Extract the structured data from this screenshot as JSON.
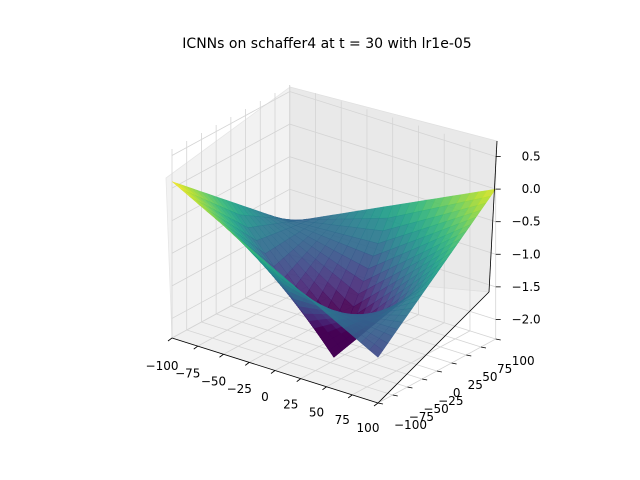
{
  "chart_data": {
    "type": "surface",
    "title": "ICNNs on schaffer4 at t = 30 with lr1e-05",
    "x_ticks": [
      "−100",
      "−75",
      "−50",
      "−25",
      "0",
      "25",
      "50",
      "75",
      "100"
    ],
    "y_ticks": [
      "−100",
      "−75",
      "−50",
      "−25",
      "0",
      "25",
      "50",
      "75",
      "100"
    ],
    "z_ticks": [
      "−2.0",
      "−1.5",
      "−1.0",
      "−0.5",
      "0.0",
      "0.5"
    ],
    "xlim": [
      -100,
      100
    ],
    "ylim": [
      -100,
      100
    ],
    "zlim": [
      -2.3,
      0.6
    ],
    "surface_corners": {
      "x_-100_y_-100": 0.1,
      "x_100_y_-100": -1.6,
      "x_100_y_100": 0.0,
      "x_-100_y_100": -1.5,
      "x_0_y_0": -1.9
    },
    "colormap": "viridis",
    "grid": true
  }
}
